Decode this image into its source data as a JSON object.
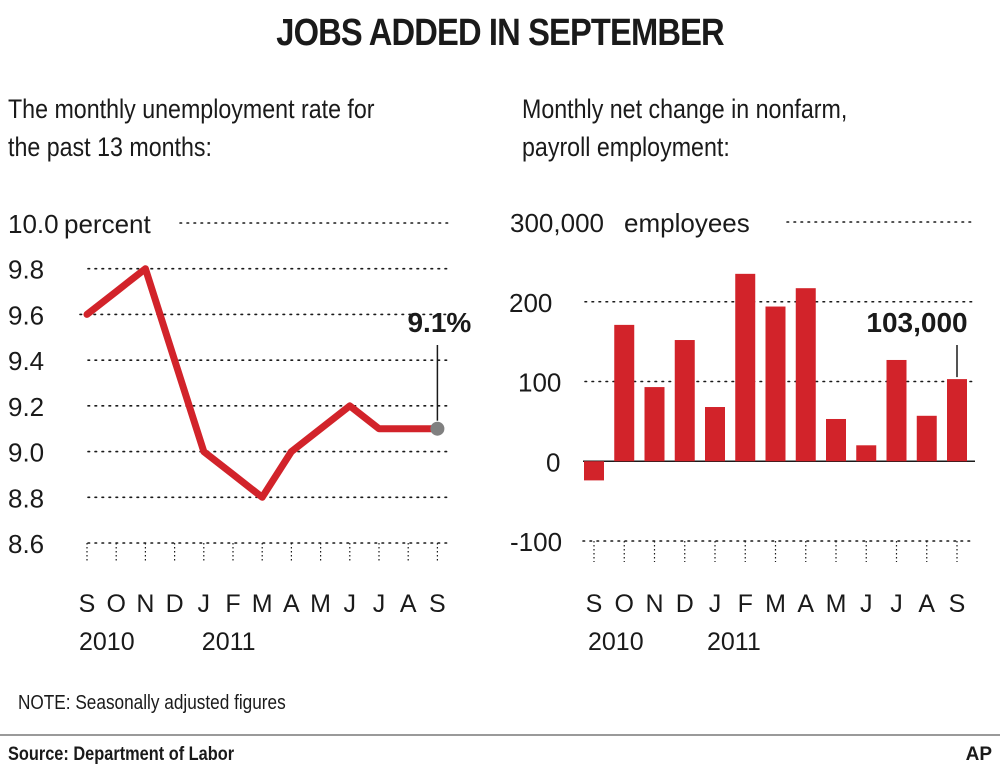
{
  "title": "JOBS ADDED IN SEPTEMBER",
  "note": "NOTE: Seasonally adjusted figures",
  "source": "Source: Department of Labor",
  "credit": "AP",
  "colors": {
    "red": "#d2232a",
    "marker": "#808080",
    "text": "#1a1a1a"
  },
  "chart_data": [
    {
      "type": "line",
      "subtitle_lines": [
        "The monthly unemployment rate for",
        "the past 13 months:"
      ],
      "unit_label": "percent",
      "x": [
        "S",
        "O",
        "N",
        "D",
        "J",
        "F",
        "M",
        "A",
        "M",
        "J",
        "J",
        "A",
        "S"
      ],
      "year_labels": [
        "2010",
        "2011"
      ],
      "y_ticks": [
        "10.0",
        "9.8",
        "9.6",
        "9.4",
        "9.2",
        "9.0",
        "8.8",
        "8.6"
      ],
      "ylim": [
        8.6,
        10.0
      ],
      "series": [
        {
          "values": [
            9.6,
            9.7,
            9.8,
            9.4,
            9.0,
            8.9,
            8.8,
            9.0,
            9.1,
            9.2,
            9.1,
            9.1,
            9.1
          ]
        }
      ],
      "callout": "9.1%",
      "grid": "dotted"
    },
    {
      "type": "bar",
      "subtitle_lines": [
        "Monthly net change in nonfarm,",
        "payroll employment:"
      ],
      "unit_label": "employees",
      "categories": [
        "S",
        "O",
        "N",
        "D",
        "J",
        "F",
        "M",
        "A",
        "M",
        "J",
        "J",
        "A",
        "S"
      ],
      "year_labels": [
        "2010",
        "2011"
      ],
      "y_ticks": [
        "300,000",
        "200",
        "100",
        "0",
        "-100"
      ],
      "ylim": [
        -100000,
        300000
      ],
      "values": [
        -24000,
        171000,
        93000,
        152000,
        68000,
        235000,
        194000,
        217000,
        53000,
        20000,
        127000,
        57000,
        103000
      ],
      "callout": "103,000",
      "grid": "dotted"
    }
  ]
}
